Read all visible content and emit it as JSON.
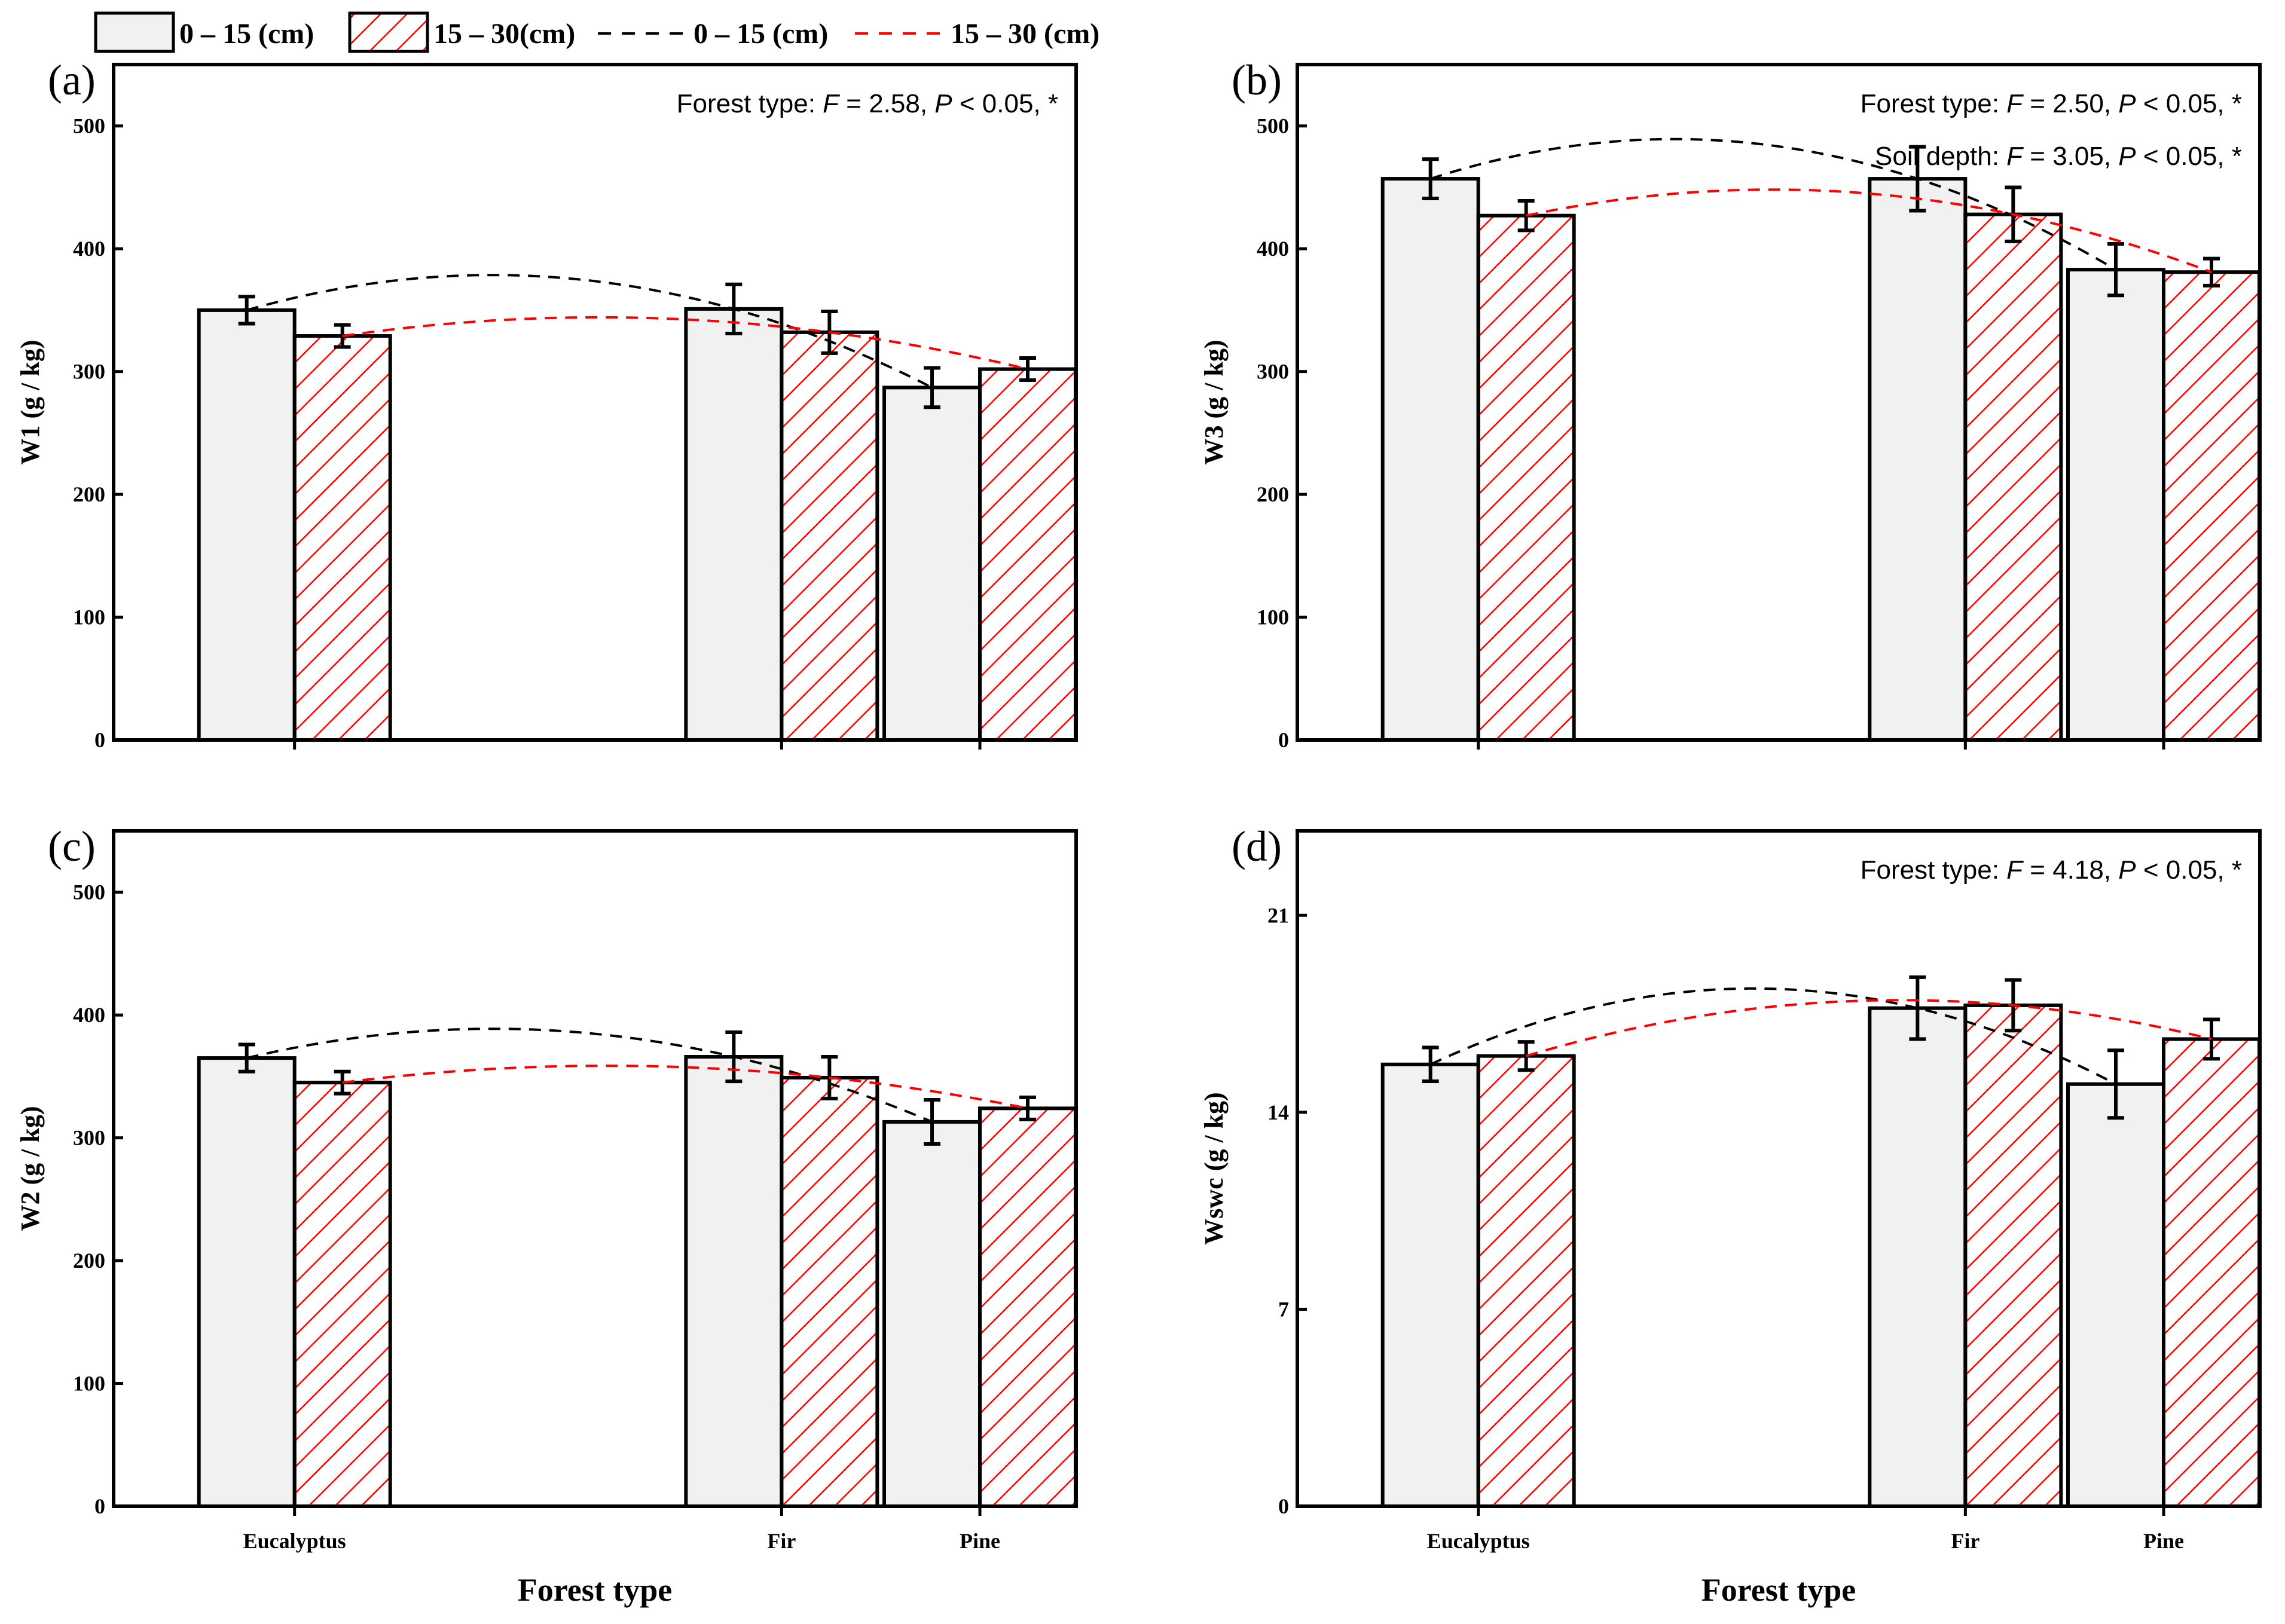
{
  "legend": {
    "bar_0_15": "0 – 15 (cm)",
    "bar_15_30": "15 – 30(cm)",
    "line_0_15": "0 – 15 (cm)",
    "line_15_30": "15 – 30 (cm)"
  },
  "colors": {
    "bar_fill_0_15": "#f1f1f1",
    "hatch_red": "#ff0000",
    "line_black": "#000000",
    "line_red": "#ff0000",
    "frame": "#000000"
  },
  "chart_data": [
    {
      "panel": "(a)",
      "type": "bar",
      "ylabel": "W1 (g / kg)",
      "xlabel": "",
      "categories": [
        "Eucalyptus",
        "Fir",
        "Pine"
      ],
      "ylim": [
        0,
        550
      ],
      "yticks": [
        0,
        100,
        200,
        300,
        400,
        500
      ],
      "show_xticklabels": false,
      "stats": [
        "Forest type: F = 2.58, P < 0.05, *"
      ],
      "series": [
        {
          "name": "0 – 15 (cm)",
          "values": [
            350,
            351,
            287
          ],
          "errors": [
            11,
            20,
            16
          ]
        },
        {
          "name": "15 – 30(cm)",
          "values": [
            329,
            332,
            302
          ],
          "errors": [
            9,
            17,
            9
          ]
        }
      ]
    },
    {
      "panel": "(b)",
      "type": "bar",
      "ylabel": "W3 (g / kg)",
      "xlabel": "",
      "categories": [
        "Eucalyptus",
        "Fir",
        "Pine"
      ],
      "ylim": [
        0,
        550
      ],
      "yticks": [
        0,
        100,
        200,
        300,
        400,
        500
      ],
      "show_xticklabels": false,
      "stats": [
        "Forest type: F = 2.50, P < 0.05, *",
        "Soil depth: F = 3.05, P < 0.05, *"
      ],
      "series": [
        {
          "name": "0 – 15 (cm)",
          "values": [
            457,
            457,
            383
          ],
          "errors": [
            16,
            26,
            21
          ]
        },
        {
          "name": "15 – 30(cm)",
          "values": [
            427,
            428,
            381
          ],
          "errors": [
            12,
            22,
            11
          ]
        }
      ]
    },
    {
      "panel": "(c)",
      "type": "bar",
      "ylabel": "W2 (g / kg)",
      "xlabel": "Forest type",
      "categories": [
        "Eucalyptus",
        "Fir",
        "Pine"
      ],
      "ylim": [
        0,
        550
      ],
      "yticks": [
        0,
        100,
        200,
        300,
        400,
        500
      ],
      "show_xticklabels": true,
      "stats": [],
      "series": [
        {
          "name": "0 – 15 (cm)",
          "values": [
            365,
            366,
            313
          ],
          "errors": [
            11,
            20,
            18
          ]
        },
        {
          "name": "15 – 30(cm)",
          "values": [
            345,
            349,
            324
          ],
          "errors": [
            9,
            17,
            9
          ]
        }
      ]
    },
    {
      "panel": "(d)",
      "type": "bar",
      "ylabel": "Wswc (g / kg)",
      "xlabel": "Forest type",
      "categories": [
        "Eucalyptus",
        "Fir",
        "Pine"
      ],
      "ylim": [
        0,
        24
      ],
      "yticks": [
        0,
        7,
        14,
        21
      ],
      "show_xticklabels": true,
      "stats": [
        "Forest type: F = 4.18, P < 0.05, *"
      ],
      "series": [
        {
          "name": "0 – 15 (cm)",
          "values": [
            15.7,
            17.7,
            15.0
          ],
          "errors": [
            0.6,
            1.1,
            1.2
          ]
        },
        {
          "name": "15 – 30(cm)",
          "values": [
            16.0,
            17.8,
            16.6
          ],
          "errors": [
            0.5,
            0.9,
            0.7
          ]
        }
      ]
    }
  ]
}
